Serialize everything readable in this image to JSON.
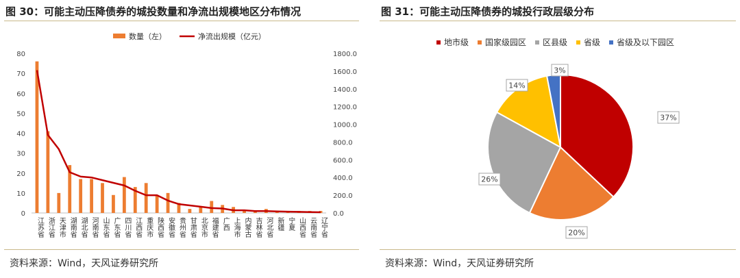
{
  "left_panel": {
    "title": "图 30：可能主动压降债券的城投数量和净流出规模地区分布情况",
    "source": "资料来源：Wind，天风证券研究所"
  },
  "right_panel": {
    "title": "图 31：可能主动压降债券的城投行政层级分布",
    "source": "资料来源：Wind，天风证券研究所"
  },
  "chart_data": [
    {
      "type": "bar",
      "title": "",
      "categories": [
        "江苏省",
        "浙江省",
        "天津市",
        "湖南省",
        "湖北省",
        "河南省",
        "山东省",
        "广东省",
        "四川省",
        "江西省",
        "重庆市",
        "陕西省",
        "安徽省",
        "贵州省",
        "甘肃省",
        "北京市",
        "福建省",
        "广西",
        "上海市",
        "内蒙古",
        "吉林省",
        "河北省",
        "新疆",
        "宁夏",
        "山西省",
        "云南省",
        "辽宁省"
      ],
      "series": [
        {
          "name": "数量（左）",
          "type": "bar",
          "axis": "left",
          "color": "#ED7D31",
          "values": [
            76,
            41,
            10,
            24,
            17,
            17,
            15,
            9,
            18,
            13,
            15,
            9,
            10,
            5,
            2,
            3,
            6,
            4,
            3,
            1,
            1,
            2,
            1,
            1,
            1,
            1,
            1
          ]
        },
        {
          "name": "净流出规模（亿元）",
          "type": "line",
          "axis": "right",
          "color": "#C00000",
          "values": [
            1610,
            880,
            720,
            460,
            410,
            400,
            370,
            340,
            310,
            250,
            200,
            200,
            140,
            100,
            85,
            70,
            55,
            50,
            30,
            30,
            22,
            22,
            18,
            15,
            12,
            10,
            8
          ]
        }
      ],
      "y_left": {
        "min": 0,
        "max": 80,
        "ticks": [
          0,
          10,
          20,
          30,
          40,
          50,
          60,
          70,
          80
        ]
      },
      "y_right": {
        "min": 0,
        "max": 1800,
        "ticks": [
          "0.0",
          "200.0",
          "400.0",
          "600.0",
          "800.0",
          "1000.0",
          "1200.0",
          "1400.0",
          "1600.0",
          "1800.0"
        ]
      },
      "legend": "top",
      "grid": false
    },
    {
      "type": "pie",
      "title": "",
      "slices": [
        {
          "name": "地市级",
          "value": 37,
          "label": "37%",
          "color": "#C00000"
        },
        {
          "name": "国家级园区",
          "value": 20,
          "label": "20%",
          "color": "#ED7D31"
        },
        {
          "name": "区县级",
          "value": 26,
          "label": "26%",
          "color": "#A5A5A5"
        },
        {
          "name": "省级",
          "value": 14,
          "label": "14%",
          "color": "#FFC000"
        },
        {
          "name": "省级及以下园区",
          "value": 3,
          "label": "3%",
          "color": "#4472C4"
        }
      ],
      "legend": "top"
    }
  ]
}
